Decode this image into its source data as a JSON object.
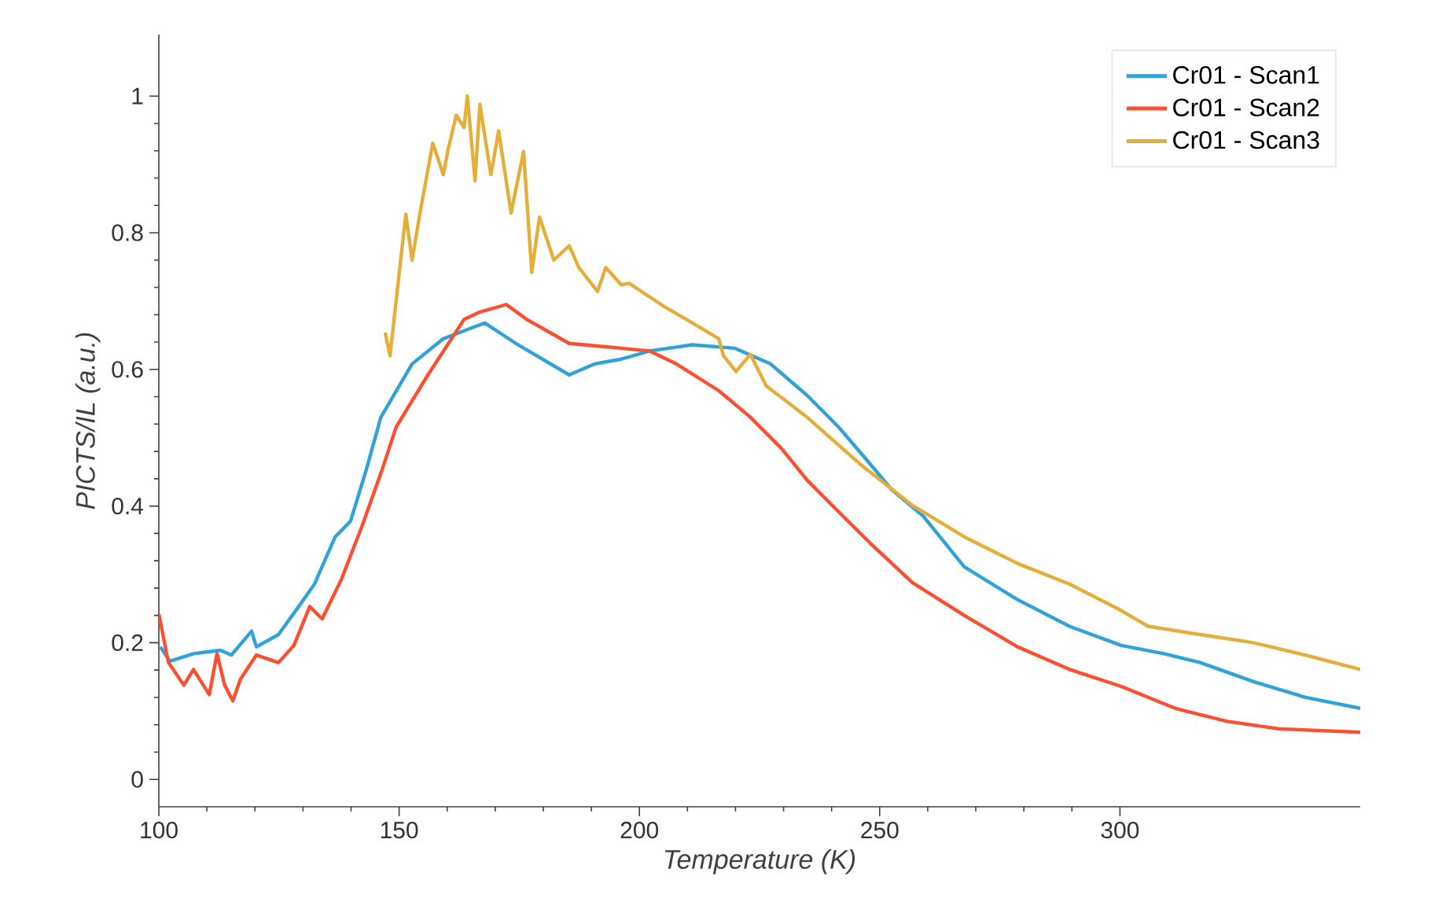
{
  "chart_data": {
    "type": "line",
    "xlabel": "Temperature (K)",
    "ylabel": "PICTS/IL (a.u.)",
    "xlim": [
      100,
      350
    ],
    "ylim": [
      -0.04,
      1.09
    ],
    "xticks": [
      100,
      150,
      200,
      250,
      300
    ],
    "yticks": [
      0,
      0.2,
      0.4,
      0.6,
      0.8,
      1
    ],
    "grid": false,
    "legend": "top right",
    "marker": "none",
    "line_style": "solid",
    "series": [
      {
        "name": "Cr01 - Scan1",
        "color": "#30a2da",
        "x": [
          100.3,
          102.3,
          107.2,
          112.8,
          115.1,
          119.3,
          120.3,
          124.9,
          129.1,
          132.4,
          136.7,
          139.9,
          143.2,
          146.2,
          152.7,
          159.2,
          167.8,
          174.3,
          185.4,
          190.7,
          196.2,
          202.1,
          211.0,
          219.8,
          227.3,
          234.9,
          241.4,
          247.0,
          252.5,
          259.1,
          267.6,
          278.7,
          289.5,
          300.3,
          309.2,
          316.7,
          327.8,
          338.6,
          350
        ],
        "values": [
          0.194,
          0.173,
          0.184,
          0.189,
          0.182,
          0.217,
          0.194,
          0.212,
          0.253,
          0.286,
          0.355,
          0.378,
          0.454,
          0.53,
          0.608,
          0.645,
          0.668,
          0.638,
          0.592,
          0.608,
          0.615,
          0.627,
          0.636,
          0.631,
          0.608,
          0.562,
          0.516,
          0.47,
          0.424,
          0.385,
          0.311,
          0.263,
          0.224,
          0.196,
          0.184,
          0.171,
          0.143,
          0.12,
          0.104
        ]
      },
      {
        "name": "Cr01 - Scan2",
        "color": "#fc4f30",
        "x": [
          100.0,
          102.0,
          105.2,
          107.2,
          110.5,
          112.1,
          113.7,
          115.4,
          117.0,
          120.3,
          124.9,
          128.1,
          131.4,
          134.0,
          138.0,
          142.2,
          146.5,
          149.4,
          156.0,
          163.5,
          166.8,
          172.3,
          176.6,
          185.4,
          196.2,
          202.1,
          207.7,
          216.5,
          223.1,
          229.6,
          234.9,
          241.4,
          248.0,
          256.8,
          267.6,
          278.7,
          289.5,
          300.3,
          311.5,
          322.3,
          333.1,
          350
        ],
        "values": [
          0.242,
          0.171,
          0.138,
          0.161,
          0.124,
          0.184,
          0.138,
          0.115,
          0.147,
          0.182,
          0.171,
          0.196,
          0.253,
          0.235,
          0.293,
          0.369,
          0.454,
          0.516,
          0.592,
          0.673,
          0.684,
          0.695,
          0.673,
          0.638,
          0.631,
          0.627,
          0.608,
          0.569,
          0.53,
          0.484,
          0.438,
          0.392,
          0.346,
          0.288,
          0.24,
          0.194,
          0.161,
          0.136,
          0.104,
          0.085,
          0.074,
          0.069
        ]
      },
      {
        "name": "Cr01 - Scan3",
        "color": "#e5ae38",
        "x": [
          147.1,
          148.1,
          151.4,
          152.7,
          154.3,
          157.0,
          159.2,
          160.2,
          161.9,
          163.5,
          164.2,
          165.8,
          166.8,
          169.1,
          170.7,
          173.3,
          175.9,
          177.6,
          179.2,
          182.2,
          185.4,
          187.4,
          191.3,
          193.0,
          196.2,
          197.9,
          205.4,
          211.0,
          216.5,
          217.5,
          220.1,
          223.1,
          226.4,
          234.9,
          246.0,
          256.8,
          267.6,
          278.7,
          289.5,
          300.3,
          305.9,
          316.7,
          327.8,
          338.6,
          350
        ],
        "values": [
          0.654,
          0.62,
          0.827,
          0.76,
          0.827,
          0.931,
          0.885,
          0.922,
          0.972,
          0.954,
          1.0,
          0.876,
          0.988,
          0.885,
          0.949,
          0.829,
          0.919,
          0.742,
          0.823,
          0.76,
          0.781,
          0.749,
          0.714,
          0.749,
          0.724,
          0.726,
          0.691,
          0.668,
          0.645,
          0.62,
          0.597,
          0.622,
          0.576,
          0.53,
          0.461,
          0.401,
          0.355,
          0.316,
          0.286,
          0.247,
          0.224,
          0.212,
          0.2,
          0.182,
          0.161
        ]
      }
    ]
  }
}
